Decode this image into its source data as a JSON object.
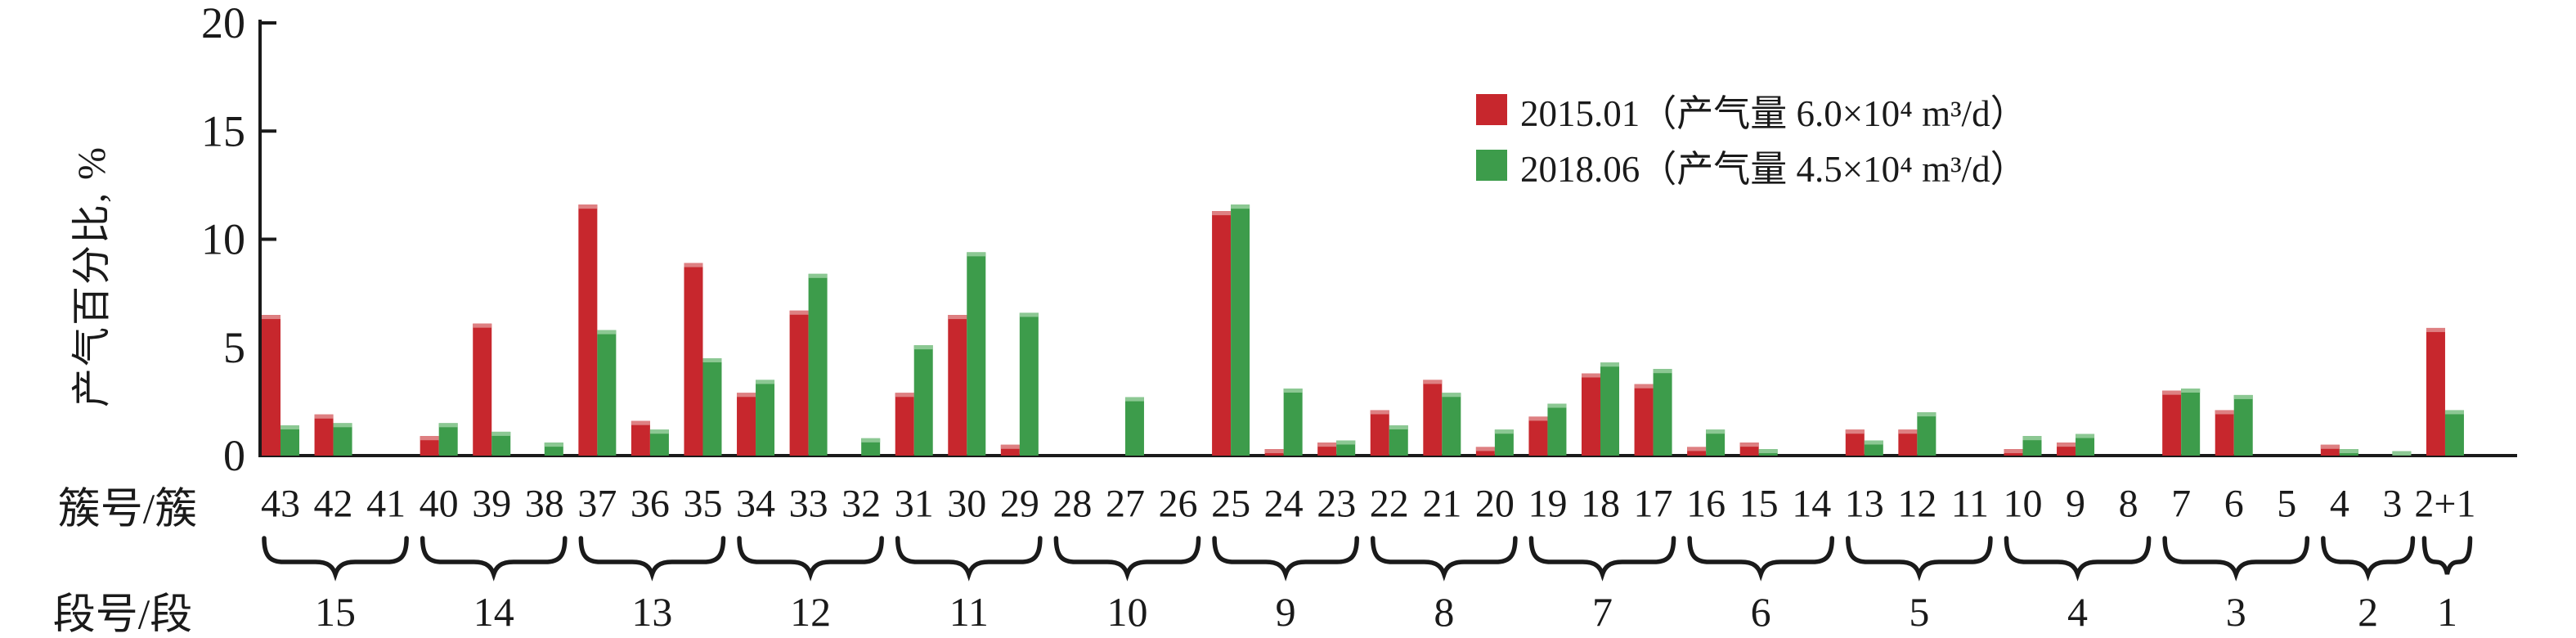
{
  "chart_data": {
    "type": "bar",
    "title": "",
    "ylabel": "产气百分比, %",
    "xlabel_cluster_row": "簇号/簇",
    "xlabel_stage_row": "段号/段",
    "ylim": [
      0,
      20
    ],
    "yticks": [
      0,
      5,
      10,
      15,
      20
    ],
    "grid": false,
    "legend_position": "top-right-inside",
    "categories": [
      "43",
      "42",
      "41",
      "40",
      "39",
      "38",
      "37",
      "36",
      "35",
      "34",
      "33",
      "32",
      "31",
      "30",
      "29",
      "28",
      "27",
      "26",
      "25",
      "24",
      "23",
      "22",
      "21",
      "20",
      "19",
      "18",
      "17",
      "16",
      "15",
      "14",
      "13",
      "12",
      "11",
      "10",
      "9",
      "8",
      "7",
      "6",
      "5",
      "4",
      "3",
      "2+1"
    ],
    "series": [
      {
        "name": "2015.01（产气量 6.0×10⁴ m³/d）",
        "color": "#c7272d",
        "cap_color": "#de8082",
        "values": [
          6.5,
          1.9,
          0,
          0.9,
          6.1,
          0,
          11.6,
          1.6,
          8.9,
          2.9,
          6.7,
          0,
          2.9,
          6.5,
          0.5,
          0,
          0,
          0,
          11.3,
          0.3,
          0.6,
          2.1,
          3.5,
          0.4,
          1.8,
          3.8,
          3.3,
          0.4,
          0.6,
          0,
          1.2,
          1.2,
          0,
          0.3,
          0.6,
          0,
          3.0,
          2.1,
          0,
          0.5,
          0,
          5.9
        ]
      },
      {
        "name": "2018.06（产气量 4.5×10⁴ m³/d）",
        "color": "#3d9c4b",
        "cap_color": "#8cc893",
        "values": [
          1.4,
          1.5,
          0,
          1.5,
          1.1,
          0.6,
          5.8,
          1.2,
          4.5,
          3.5,
          8.4,
          0.8,
          5.1,
          9.4,
          6.6,
          0,
          2.7,
          0,
          11.6,
          3.1,
          0.7,
          1.4,
          2.9,
          1.2,
          2.4,
          4.3,
          4.0,
          1.2,
          0.3,
          0,
          0.7,
          2.0,
          0,
          0.9,
          1.0,
          0,
          3.1,
          2.8,
          0,
          0.3,
          0.2,
          2.1
        ]
      }
    ],
    "stages": [
      {
        "label": "15",
        "clusters": [
          "43",
          "42",
          "41"
        ]
      },
      {
        "label": "14",
        "clusters": [
          "40",
          "39",
          "38"
        ]
      },
      {
        "label": "13",
        "clusters": [
          "37",
          "36",
          "35"
        ]
      },
      {
        "label": "12",
        "clusters": [
          "34",
          "33",
          "32"
        ]
      },
      {
        "label": "11",
        "clusters": [
          "31",
          "30",
          "29"
        ]
      },
      {
        "label": "10",
        "clusters": [
          "28",
          "27",
          "26"
        ]
      },
      {
        "label": "9",
        "clusters": [
          "25",
          "24",
          "23"
        ]
      },
      {
        "label": "8",
        "clusters": [
          "22",
          "21",
          "20"
        ]
      },
      {
        "label": "7",
        "clusters": [
          "19",
          "18",
          "17"
        ]
      },
      {
        "label": "6",
        "clusters": [
          "16",
          "15",
          "14"
        ]
      },
      {
        "label": "5",
        "clusters": [
          "13",
          "12",
          "11"
        ]
      },
      {
        "label": "4",
        "clusters": [
          "10",
          "9",
          "8"
        ]
      },
      {
        "label": "3",
        "clusters": [
          "7",
          "6",
          "5"
        ]
      },
      {
        "label": "2",
        "clusters": [
          "4",
          "3"
        ]
      },
      {
        "label": "1",
        "clusters": [
          "2+1"
        ]
      }
    ],
    "axis_color": "#1a1a1a"
  }
}
